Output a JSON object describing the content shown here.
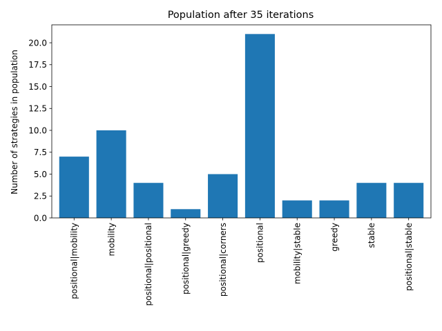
{
  "chart_data": {
    "type": "bar",
    "title": "Population after 35 iterations",
    "xlabel": "",
    "ylabel": "Number of strategies in population",
    "categories": [
      "positional|mobility",
      "mobility",
      "positional|positional",
      "positional|greedy",
      "positional|corners",
      "positional",
      "mobility|stable",
      "greedy",
      "stable",
      "positional|stable"
    ],
    "values": [
      7,
      10,
      4,
      1,
      5,
      21,
      2,
      2,
      4,
      4
    ],
    "ylim": [
      0,
      22.05
    ],
    "yticks": [
      0.0,
      2.5,
      5.0,
      7.5,
      10.0,
      12.5,
      15.0,
      17.5,
      20.0
    ],
    "ytick_labels": [
      "0.0",
      "2.5",
      "5.0",
      "7.5",
      "10.0",
      "12.5",
      "15.0",
      "17.5",
      "20.0"
    ],
    "bar_color": "#1f77b4",
    "grid": false,
    "legend": false
  }
}
